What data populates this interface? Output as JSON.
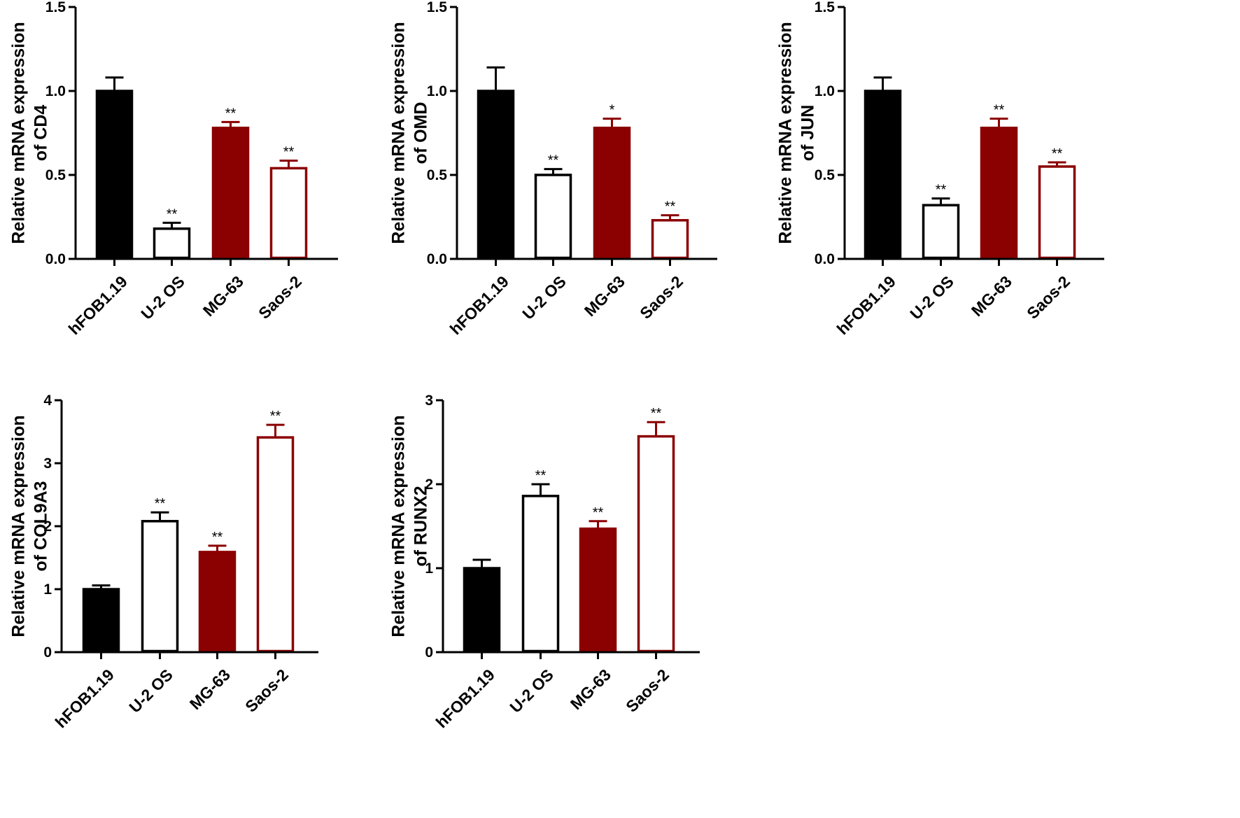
{
  "chart_data": [
    {
      "type": "bar",
      "ylabel": [
        "Relative mRNA expression",
        "of CD4"
      ],
      "categories": [
        "hFOB1.19",
        "U-2 OS",
        "MG-63",
        "Saos-2"
      ],
      "values": [
        1.0,
        0.18,
        0.78,
        0.54
      ],
      "errors": [
        0.08,
        0.035,
        0.035,
        0.045
      ],
      "significance": [
        "",
        "**",
        "**",
        "**"
      ],
      "ylim": [
        0,
        1.5
      ],
      "yticks": [
        0.0,
        0.5,
        1.0,
        1.5
      ],
      "ytick_labels": [
        "0.0",
        "0.5",
        "1.0",
        "1.5"
      ],
      "bar_styles": [
        "black",
        "white",
        "red",
        "red-outline"
      ]
    },
    {
      "type": "bar",
      "ylabel": [
        "Relative mRNA expression",
        "of OMD"
      ],
      "categories": [
        "hFOB1.19",
        "U-2 OS",
        "MG-63",
        "Saos-2"
      ],
      "values": [
        1.0,
        0.5,
        0.78,
        0.23
      ],
      "errors": [
        0.14,
        0.035,
        0.055,
        0.03
      ],
      "significance": [
        "",
        "**",
        "*",
        "**"
      ],
      "ylim": [
        0,
        1.5
      ],
      "yticks": [
        0.0,
        0.5,
        1.0,
        1.5
      ],
      "ytick_labels": [
        "0.0",
        "0.5",
        "1.0",
        "1.5"
      ],
      "bar_styles": [
        "black",
        "white",
        "red",
        "red-outline"
      ]
    },
    {
      "type": "bar",
      "ylabel": [
        "Relative mRNA expression",
        "of JUN"
      ],
      "categories": [
        "hFOB1.19",
        "U-2 OS",
        "MG-63",
        "Saos-2"
      ],
      "values": [
        1.0,
        0.32,
        0.78,
        0.55
      ],
      "errors": [
        0.08,
        0.04,
        0.055,
        0.025
      ],
      "significance": [
        "",
        "**",
        "**",
        "**"
      ],
      "ylim": [
        0,
        1.5
      ],
      "yticks": [
        0.0,
        0.5,
        1.0,
        1.5
      ],
      "ytick_labels": [
        "0.0",
        "0.5",
        "1.0",
        "1.5"
      ],
      "bar_styles": [
        "black",
        "white",
        "red",
        "red-outline"
      ]
    },
    {
      "type": "bar",
      "ylabel": [
        "Relative mRNA expression",
        "of COL9A3"
      ],
      "categories": [
        "hFOB1.19",
        "U-2 OS",
        "MG-63",
        "Saos-2"
      ],
      "values": [
        1.0,
        2.08,
        1.59,
        3.41
      ],
      "errors": [
        0.06,
        0.14,
        0.1,
        0.2
      ],
      "significance": [
        "",
        "**",
        "**",
        "**"
      ],
      "ylim": [
        0,
        4
      ],
      "yticks": [
        0,
        1,
        2,
        3,
        4
      ],
      "ytick_labels": [
        "0",
        "1",
        "2",
        "3",
        "4"
      ],
      "bar_styles": [
        "black",
        "white",
        "red",
        "red-outline"
      ]
    },
    {
      "type": "bar",
      "ylabel": [
        "Relative mRNA expression",
        "of RUNX2"
      ],
      "categories": [
        "hFOB1.19",
        "U-2 OS",
        "MG-63",
        "Saos-2"
      ],
      "values": [
        1.0,
        1.86,
        1.47,
        2.57
      ],
      "errors": [
        0.1,
        0.14,
        0.09,
        0.17
      ],
      "significance": [
        "",
        "**",
        "**",
        "**"
      ],
      "ylim": [
        0,
        3
      ],
      "yticks": [
        0,
        1,
        2,
        3
      ],
      "ytick_labels": [
        "0",
        "1",
        "2",
        "3"
      ],
      "bar_styles": [
        "black",
        "white",
        "red",
        "red-outline"
      ]
    }
  ],
  "colors": {
    "black": "#000000",
    "red": "#8b0000",
    "outline": "#000000",
    "background": "#ffffff"
  }
}
